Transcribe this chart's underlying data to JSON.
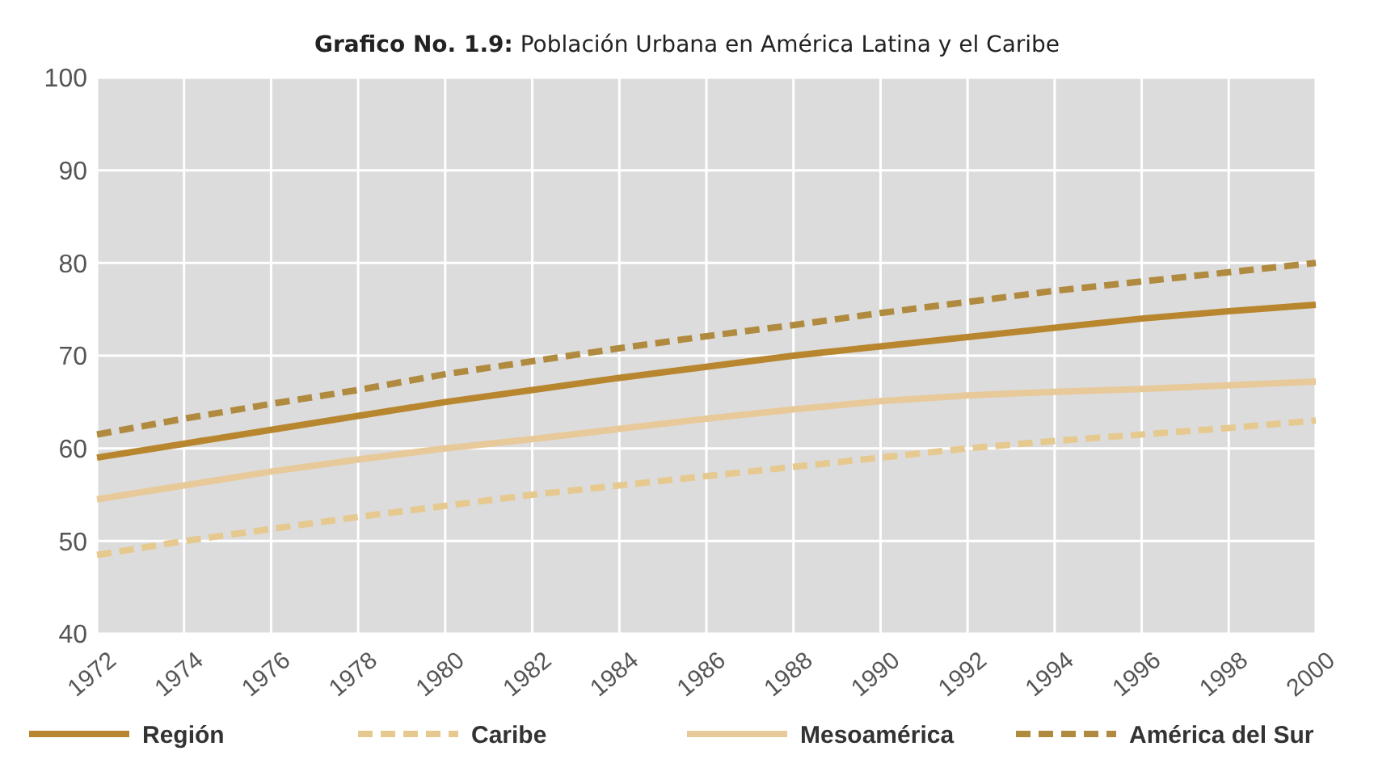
{
  "chart_data": {
    "type": "line",
    "title": "Grafico No. 1.9: Población Urbana en América Latina y el Caribe",
    "x": [
      1972,
      1974,
      1976,
      1978,
      1980,
      1982,
      1984,
      1986,
      1988,
      1990,
      1992,
      1994,
      1996,
      1998,
      2000
    ],
    "xlim": [
      1972,
      2000
    ],
    "xticks": [
      1972,
      1974,
      1976,
      1978,
      1980,
      1982,
      1984,
      1986,
      1988,
      1990,
      1992,
      1994,
      1996,
      1998,
      2000
    ],
    "ylim": [
      40,
      100
    ],
    "yticks": [
      40,
      50,
      60,
      70,
      80,
      90,
      100
    ],
    "grid": true,
    "legend": "bottom",
    "series": [
      {
        "name": "Región",
        "color": "#b8862e",
        "line_style": "solid",
        "values": [
          59,
          60.5,
          62,
          63.5,
          65,
          66.3,
          67.6,
          68.8,
          70,
          71,
          72,
          73,
          74,
          74.8,
          75.5
        ]
      },
      {
        "name": "Caribe",
        "color": "#e6c98f",
        "line_style": "dashed",
        "values": [
          48.5,
          50,
          51.3,
          52.6,
          53.8,
          55,
          56,
          57,
          58,
          59,
          60,
          60.8,
          61.5,
          62.2,
          63
        ]
      },
      {
        "name": "Mesoamérica",
        "color": "#e8c99a",
        "line_style": "solid",
        "values": [
          54.5,
          56,
          57.5,
          58.8,
          60,
          61,
          62.1,
          63.2,
          64.2,
          65.1,
          65.7,
          66.1,
          66.4,
          66.8,
          67.2
        ]
      },
      {
        "name": "América del Sur",
        "color": "#b08a3e",
        "line_style": "dashed",
        "values": [
          61.5,
          63.2,
          64.8,
          66.3,
          68,
          69.4,
          70.8,
          72.1,
          73.3,
          74.6,
          75.8,
          77,
          78,
          79,
          80
        ]
      }
    ]
  }
}
